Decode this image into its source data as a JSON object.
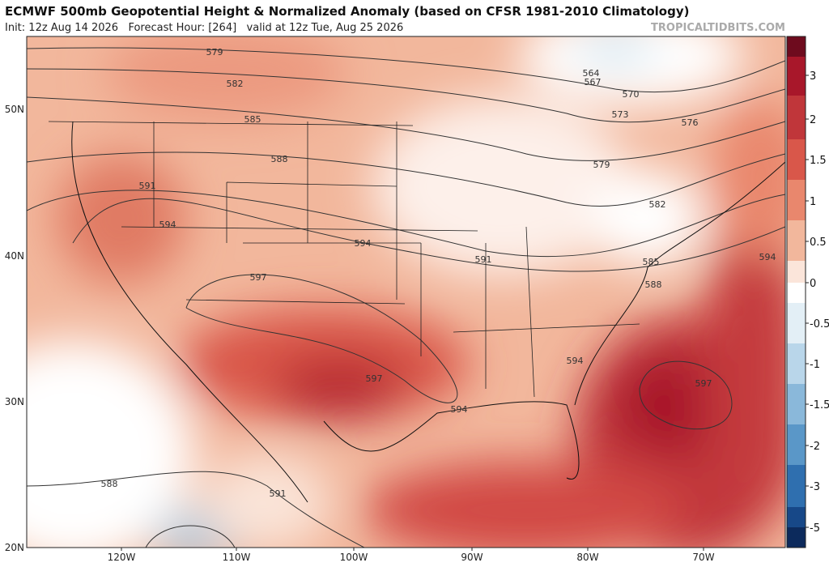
{
  "header": {
    "title": "ECMWF 500mb Geopotential Height & Normalized Anomaly (based on CFSR 1981-2010 Climatology)",
    "subtitle": "Init: 12z Aug 14 2026   Forecast Hour: [264]   valid at 12z Tue, Aug 25 2026",
    "credit": "TROPICALTIDBITS.COM"
  },
  "map": {
    "lat_labels": [
      "50N",
      "40N",
      "30N",
      "20N"
    ],
    "lon_labels": [
      "120W",
      "110W",
      "100W",
      "90W",
      "80W",
      "70W"
    ],
    "contour_labels": [
      "579",
      "582",
      "585",
      "588",
      "591",
      "594",
      "594",
      "597",
      "591",
      "597",
      "594",
      "594",
      "597",
      "594",
      "588",
      "585",
      "582",
      "579",
      "576",
      "573",
      "570",
      "567",
      "564",
      "588",
      "591"
    ]
  },
  "colorbar": {
    "ticks": [
      3,
      2,
      1.5,
      1,
      0.5,
      0,
      -0.5,
      -1,
      -1.5,
      -2,
      -3,
      -5
    ]
  }
}
